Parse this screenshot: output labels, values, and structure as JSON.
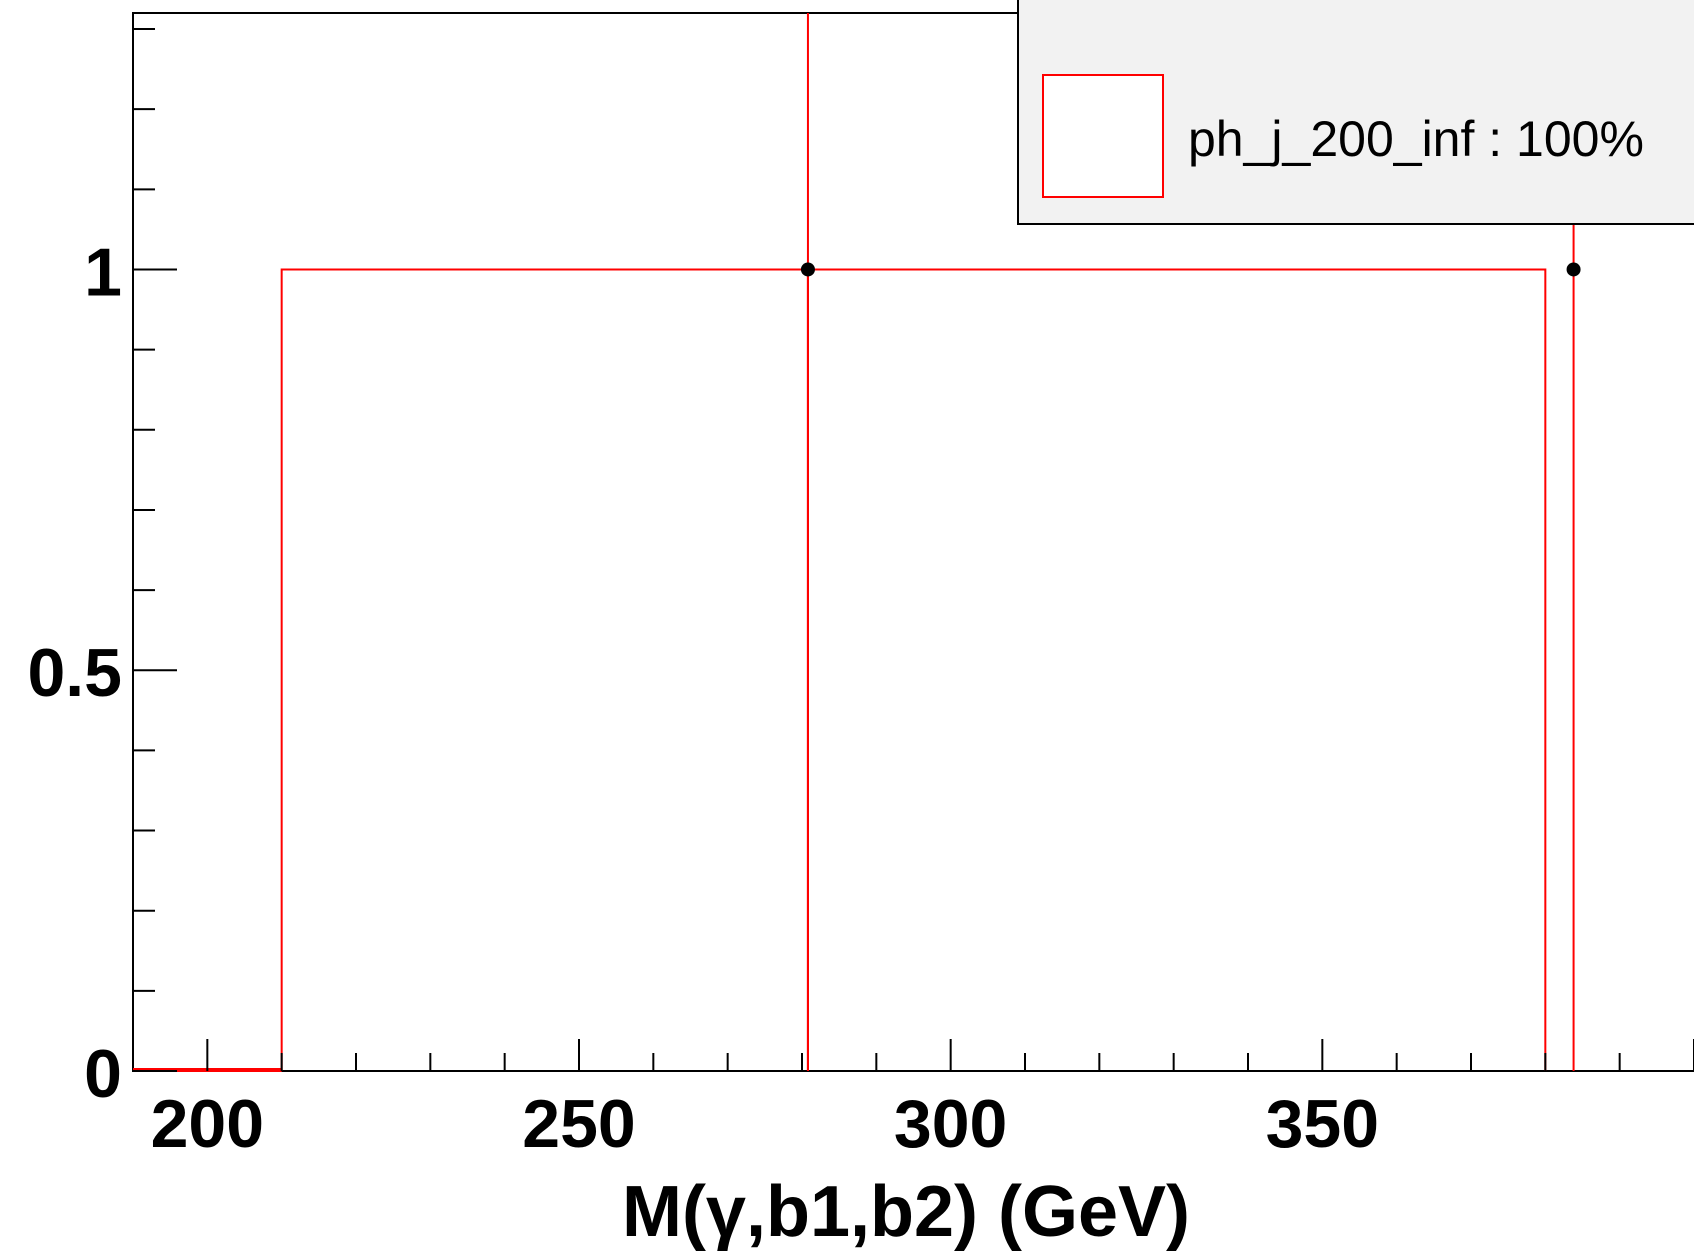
{
  "chart_data": {
    "type": "histogram",
    "xlabel": "M(γ,b1,b2) (GeV)",
    "ylabel": "",
    "xlim": [
      190,
      400
    ],
    "ylim": [
      0,
      1.32
    ],
    "x_ticks": [
      200,
      250,
      300,
      350
    ],
    "x_tick_labels": [
      "200",
      "250",
      "300",
      "350"
    ],
    "y_ticks": [
      0,
      0.5,
      1
    ],
    "y_tick_labels": [
      "0",
      "0.5",
      "1"
    ],
    "grid": false,
    "series": [
      {
        "name": "ph_j_200_inf : 100%",
        "color": "#ff0000",
        "bin_edges": [
          190,
          210,
          280.8,
          380
        ],
        "values": [
          0,
          1,
          1
        ],
        "points": [
          {
            "x": 280.8,
            "y": 1
          },
          {
            "x": 383.8,
            "y": 1
          }
        ]
      }
    ],
    "legend": {
      "placement": "top-right",
      "entries": [
        "ph_j_200_inf : 100%"
      ]
    }
  }
}
